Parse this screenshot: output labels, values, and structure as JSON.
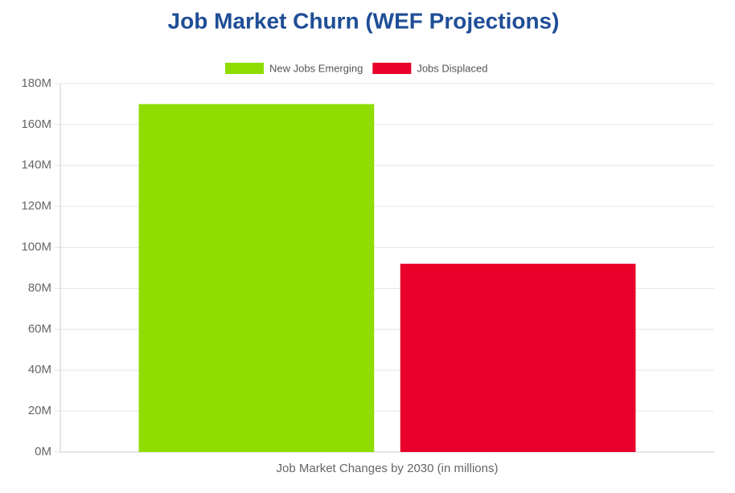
{
  "chart_data": {
    "type": "bar",
    "title": "Job Market Churn (WEF Projections)",
    "categories": [
      "Job Market Changes by 2030 (in millions)"
    ],
    "series": [
      {
        "name": "New Jobs Emerging",
        "color": "#8fdc00",
        "values": [
          170
        ]
      },
      {
        "name": "Jobs Displaced",
        "color": "#e8002a",
        "values": [
          92
        ]
      }
    ],
    "ylim": [
      0,
      180
    ],
    "yticks": [
      {
        "value": 0,
        "label": "0M"
      },
      {
        "value": 20,
        "label": "20M"
      },
      {
        "value": 40,
        "label": "40M"
      },
      {
        "value": 60,
        "label": "60M"
      },
      {
        "value": 80,
        "label": "80M"
      },
      {
        "value": 100,
        "label": "100M"
      },
      {
        "value": 120,
        "label": "120M"
      },
      {
        "value": 140,
        "label": "140M"
      },
      {
        "value": 160,
        "label": "160M"
      },
      {
        "value": 180,
        "label": "180M"
      }
    ],
    "grid": true,
    "legend": "top"
  }
}
